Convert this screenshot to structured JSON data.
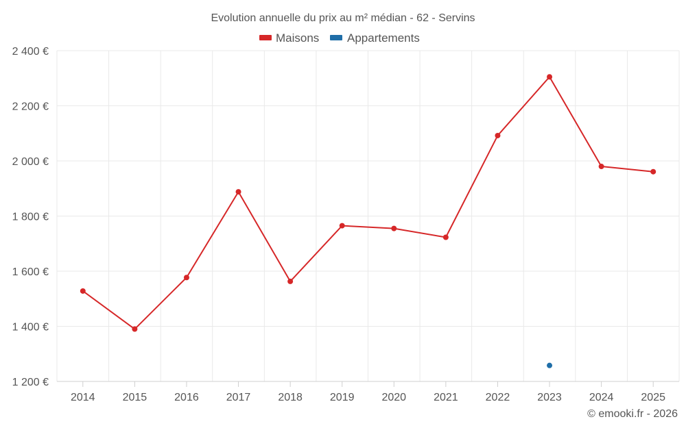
{
  "chart_data": {
    "type": "line",
    "title": "Evolution annuelle du prix au m² médian - 62 - Servins",
    "categories": [
      "2014",
      "2015",
      "2016",
      "2017",
      "2018",
      "2019",
      "2020",
      "2021",
      "2022",
      "2023",
      "2024",
      "2025"
    ],
    "series": [
      {
        "name": "Maisons",
        "color": "#d62728",
        "values": [
          1528,
          1390,
          1577,
          1888,
          1563,
          1765,
          1755,
          1723,
          2092,
          2305,
          1980,
          1961
        ]
      },
      {
        "name": "Appartements",
        "color": "#1f6ea8",
        "values": [
          null,
          null,
          null,
          null,
          null,
          null,
          null,
          null,
          null,
          1258,
          null,
          null
        ]
      }
    ],
    "ylim": [
      1200,
      2400
    ],
    "yticks": [
      1200,
      1400,
      1600,
      1800,
      2000,
      2200,
      2400
    ],
    "ytick_labels": [
      "1 200 €",
      "1 400 €",
      "1 600 €",
      "1 800 €",
      "2 000 €",
      "2 200 €",
      "2 400 €"
    ],
    "xlabel": "",
    "ylabel": "",
    "grid": true,
    "legend_position": "top-center"
  },
  "credit": "© emooki.fr - 2026"
}
